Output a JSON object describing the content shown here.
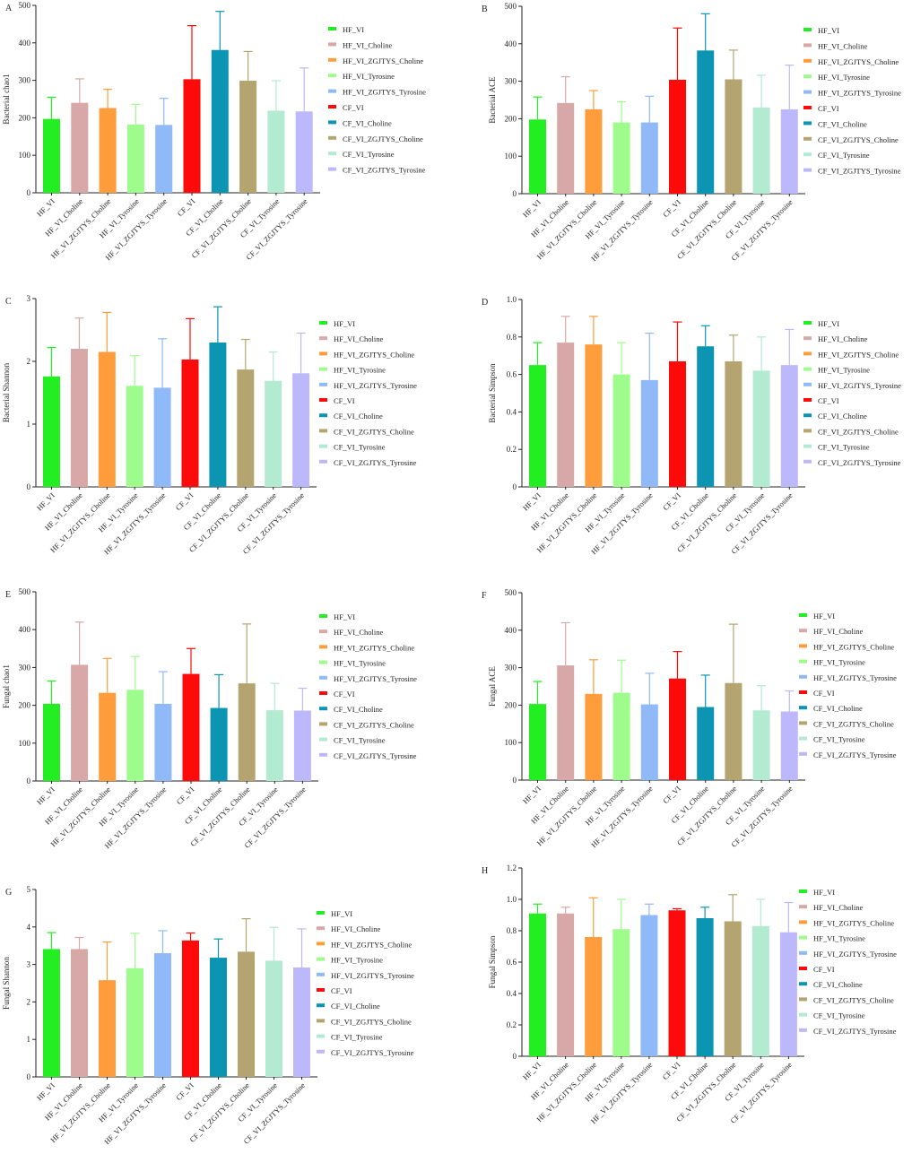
{
  "groups": [
    "HF_VI",
    "HF_VI_Choline",
    "HF_VI_ZGJTYS_Choline",
    "HF_VI_Tyrosine",
    "HF_VI_ZGJTYS_Tyrosine",
    "CF_VI",
    "CF_VI_Choline",
    "CF_VI_ZGJTYS_Choline",
    "CF_VI_Tyrosine",
    "CF_VI_ZGJTYS_Tyrosine"
  ],
  "colors": [
    "#22ee22",
    "#d8a8a8",
    "#ff9d3c",
    "#9dfc8c",
    "#8fb9f7",
    "#ff0a0a",
    "#0b95b2",
    "#b3a470",
    "#b2ead2",
    "#bcb8fb"
  ],
  "chart_data": [
    {
      "panel": "A",
      "type": "bar",
      "ylabel": "Bacterial chao1",
      "ylim": [
        0,
        500
      ],
      "yticks": [
        "0",
        "100",
        "200",
        "300",
        "400",
        "500"
      ],
      "categories": [
        "HF_VI",
        "HF_VI_Choline",
        "HF_VI_ZGJTYS_Choline",
        "HF_VI_Tyrosine",
        "HF_VI_ZGJTYS_Tyrosine",
        "CF_VI",
        "CF_VI_Choline",
        "CF_VI_ZGJTYS_Choline",
        "CF_VI_Tyrosine",
        "CF_VI_ZGJTYS_Tyrosine"
      ],
      "values": [
        197,
        240,
        226,
        182,
        181,
        303,
        381,
        299,
        219,
        217
      ],
      "errors": [
        58,
        64,
        50,
        54,
        71,
        143,
        103,
        78,
        80,
        116
      ]
    },
    {
      "panel": "B",
      "type": "bar",
      "ylabel": "Bacterial ACE",
      "ylim": [
        0,
        500
      ],
      "yticks": [
        "0",
        "100",
        "200",
        "300",
        "400",
        "500"
      ],
      "categories": [
        "HF_VI",
        "HF_VI_Choline",
        "HF_VI_ZGJTYS_Choline",
        "HF_VI_Tyrosine",
        "HF_VI_ZGJTYS_Tyrosine",
        "CF_VI",
        "CF_VI_Choline",
        "CF_VI_ZGJTYS_Choline",
        "CF_VI_Tyrosine",
        "CF_VI_ZGJTYS_Tyrosine"
      ],
      "values": [
        198,
        242,
        225,
        190,
        190,
        304,
        382,
        305,
        230,
        225
      ],
      "errors": [
        60,
        70,
        50,
        55,
        70,
        138,
        98,
        78,
        86,
        118
      ]
    },
    {
      "panel": "C",
      "type": "bar",
      "ylabel": "Bacterial Shannon",
      "ylim": [
        0,
        3
      ],
      "yticks": [
        "0",
        "1",
        "2",
        "3"
      ],
      "categories": [
        "HF_VI",
        "HF_VI_Choline",
        "HF_VI_ZGJTYS_Choline",
        "HF_VI_Tyrosine",
        "HF_VI_ZGJTYS_Tyrosine",
        "CF_VI",
        "CF_VI_Choline",
        "CF_VI_ZGJTYS_Choline",
        "CF_VI_Tyrosine",
        "CF_VI_ZGJTYS_Tyrosine"
      ],
      "values": [
        1.76,
        2.2,
        2.15,
        1.61,
        1.58,
        2.03,
        2.3,
        1.87,
        1.69,
        1.81
      ],
      "errors": [
        0.46,
        0.49,
        0.63,
        0.48,
        0.78,
        0.65,
        0.57,
        0.48,
        0.46,
        0.64
      ]
    },
    {
      "panel": "D",
      "type": "bar",
      "ylabel": "Bacterial Simpson",
      "ylim": [
        0,
        1
      ],
      "yticks": [
        "0",
        "0.2",
        "0.4",
        "0.6",
        "0.8",
        "1.0"
      ],
      "categories": [
        "HF_VI",
        "HF_VI_Choline",
        "HF_VI_ZGJTYS_Choline",
        "HF_VI_Tyrosine",
        "HF_VI_ZGJTYS_Tyrosine",
        "CF_VI",
        "CF_VI_Choline",
        "CF_VI_ZGJTYS_Choline",
        "CF_VI_Tyrosine",
        "CF_VI_ZGJTYS_Tyrosine"
      ],
      "values": [
        0.65,
        0.77,
        0.76,
        0.6,
        0.57,
        0.67,
        0.75,
        0.67,
        0.62,
        0.65
      ],
      "errors": [
        0.12,
        0.14,
        0.15,
        0.17,
        0.25,
        0.21,
        0.11,
        0.14,
        0.18,
        0.19
      ]
    },
    {
      "panel": "E",
      "type": "bar",
      "ylabel": "Fungal chao1",
      "ylim": [
        0,
        500
      ],
      "yticks": [
        "0",
        "100",
        "200",
        "300",
        "400",
        "500"
      ],
      "categories": [
        "HF_VI",
        "HF_VI_Choline",
        "HF_VI_ZGJTYS_Choline",
        "HF_VI_Tyrosine",
        "HF_VI_ZGJTYS_Tyrosine",
        "CF_VI",
        "CF_VI_Choline",
        "CF_VI_ZGJTYS_Choline",
        "CF_VI_Tyrosine",
        "CF_VI_ZGJTYS_Tyrosine"
      ],
      "values": [
        204,
        307,
        233,
        241,
        204,
        283,
        193,
        258,
        187,
        186
      ],
      "errors": [
        60,
        113,
        91,
        88,
        85,
        67,
        88,
        157,
        71,
        59
      ]
    },
    {
      "panel": "F",
      "type": "bar",
      "ylabel": "Fungal ACE",
      "ylim": [
        0,
        500
      ],
      "yticks": [
        "0",
        "100",
        "200",
        "300",
        "400",
        "500"
      ],
      "categories": [
        "HF_VI",
        "HF_VI_Choline",
        "HF_VI_ZGJTYS_Choline",
        "HF_VI_Tyrosine",
        "HF_VI_ZGJTYS_Tyrosine",
        "CF_VI",
        "CF_VI_Choline",
        "CF_VI_ZGJTYS_Choline",
        "CF_VI_Tyrosine",
        "CF_VI_ZGJTYS_Tyrosine"
      ],
      "values": [
        203,
        306,
        230,
        233,
        202,
        271,
        195,
        259,
        186,
        183
      ],
      "errors": [
        60,
        114,
        91,
        87,
        83,
        72,
        85,
        157,
        66,
        55
      ]
    },
    {
      "panel": "G",
      "type": "bar",
      "ylabel": "Fungal Shannon",
      "ylim": [
        0,
        5
      ],
      "yticks": [
        "0",
        "1",
        "2",
        "3",
        "4",
        "5"
      ],
      "categories": [
        "HF_VI",
        "HF_VI_Choline",
        "HF_VI_ZGJTYS_Choline",
        "HF_VI_Tyrosine",
        "HF_VI_ZGJTYS_Tyrosine",
        "CF_VI",
        "CF_VI_Choline",
        "CF_VI_ZGJTYS_Choline",
        "CF_VI_Tyrosine",
        "CF_VI_ZGJTYS_Tyrosine"
      ],
      "values": [
        3.41,
        3.41,
        2.58,
        2.9,
        3.3,
        3.64,
        3.18,
        3.34,
        3.1,
        2.92
      ],
      "errors": [
        0.44,
        0.31,
        1.02,
        0.93,
        0.6,
        0.2,
        0.5,
        0.88,
        0.89,
        1.03
      ]
    },
    {
      "panel": "H",
      "type": "bar",
      "ylabel": "Fungal Simpson",
      "ylim": [
        0,
        1.2
      ],
      "yticks": [
        "0",
        "0.2",
        "0.4",
        "0.6",
        "0.8",
        "1.0",
        "1.2"
      ],
      "categories": [
        "HF_VI",
        "HF_VI_Choline",
        "HF_VI_ZGJTYS_Choline",
        "HF_VI_Tyrosine",
        "HF_VI_ZGJTYS_Tyrosine",
        "CF_VI",
        "CF_VI_Choline",
        "CF_VI_ZGJTYS_Choline",
        "CF_VI_Tyrosine",
        "CF_VI_ZGJTYS_Tyrosine"
      ],
      "values": [
        0.91,
        0.91,
        0.76,
        0.81,
        0.9,
        0.93,
        0.88,
        0.86,
        0.83,
        0.79
      ],
      "errors": [
        0.06,
        0.04,
        0.25,
        0.19,
        0.07,
        0.01,
        0.07,
        0.17,
        0.17,
        0.19
      ]
    }
  ]
}
